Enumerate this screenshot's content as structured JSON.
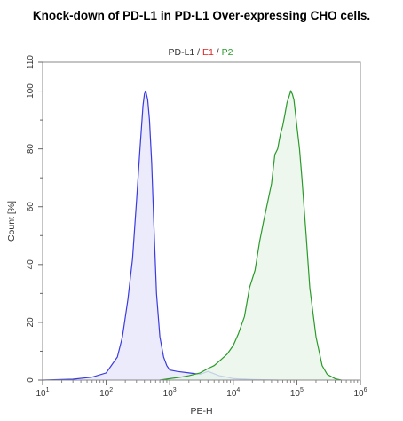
{
  "title": "Knock-down of PD-L1 in PD-L1 Over-expressing CHO cells.",
  "chart_data": {
    "type": "area",
    "legend": {
      "placement": "top-center",
      "parts": [
        {
          "text": "PD-L1",
          "color": "#333333"
        },
        {
          "text": " / ",
          "color": "#333333"
        },
        {
          "text": "E1",
          "color": "#e02020"
        },
        {
          "text": " / ",
          "color": "#333333"
        },
        {
          "text": "P2",
          "color": "#2a9a2a"
        }
      ]
    },
    "xlabel": "PE-H",
    "ylabel": "Count [%]",
    "xscale": "log",
    "xlim": [
      10,
      1000000
    ],
    "ylim": [
      0,
      110
    ],
    "x_ticks": [
      {
        "base": "10",
        "exp": "1"
      },
      {
        "base": "10",
        "exp": "2"
      },
      {
        "base": "10",
        "exp": "3"
      },
      {
        "base": "10",
        "exp": "4"
      },
      {
        "base": "10",
        "exp": "5"
      },
      {
        "base": "10",
        "exp": "6"
      }
    ],
    "y_ticks": [
      "0",
      "20",
      "40",
      "60",
      "80",
      "100",
      "110"
    ],
    "series": [
      {
        "name": "E1",
        "stroke": "#3a3ae0",
        "fill": "#e6e6fb",
        "x": [
          10,
          30,
          60,
          100,
          150,
          180,
          220,
          260,
          300,
          340,
          380,
          400,
          420,
          450,
          480,
          520,
          560,
          620,
          700,
          800,
          900,
          1000,
          1300,
          2000,
          3000,
          4000,
          6000,
          8000,
          10000,
          20000,
          50000
        ],
        "y": [
          0,
          0.3,
          1,
          2.5,
          8,
          15,
          28,
          42,
          62,
          80,
          95,
          99,
          100,
          97,
          90,
          75,
          55,
          30,
          15,
          8,
          5,
          3.5,
          3,
          2.5,
          2,
          3,
          1.5,
          1,
          0.5,
          0.2,
          0
        ]
      },
      {
        "name": "P2",
        "stroke": "#2a9a2a",
        "fill": "#e8f5e8",
        "x": [
          700,
          1000,
          1500,
          2000,
          3000,
          4000,
          5000,
          6000,
          8000,
          10000,
          12000,
          15000,
          18000,
          22000,
          26000,
          30000,
          35000,
          40000,
          45000,
          50000,
          55000,
          60000,
          65000,
          70000,
          75000,
          80000,
          85000,
          90000,
          100000,
          110000,
          120000,
          140000,
          160000,
          200000,
          250000,
          300000,
          400000,
          500000
        ],
        "y": [
          0,
          0.5,
          1,
          1.5,
          2.5,
          4,
          5,
          6.5,
          9,
          12,
          16,
          22,
          32,
          38,
          48,
          55,
          62,
          68,
          78,
          80,
          85,
          88,
          92,
          96,
          98,
          100,
          99,
          97,
          88,
          80,
          70,
          50,
          32,
          15,
          5,
          2,
          0.5,
          0
        ]
      }
    ]
  }
}
